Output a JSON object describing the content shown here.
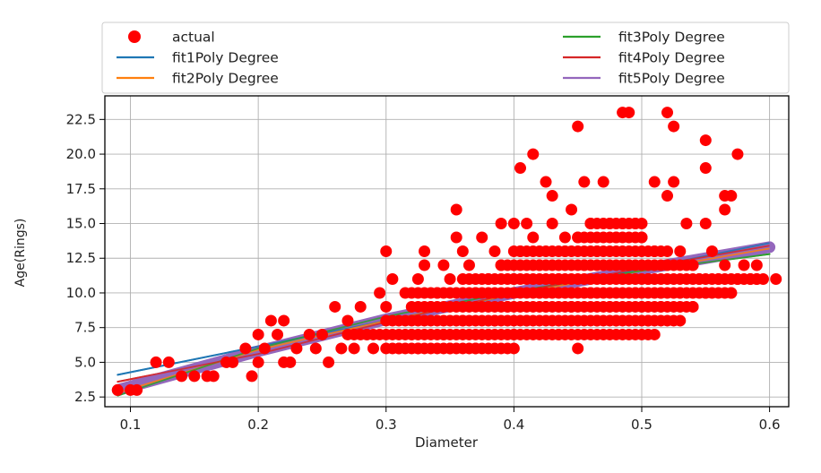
{
  "chart_data": {
    "type": "scatter",
    "xlabel": "Diameter",
    "ylabel": "Age(Rings)",
    "xlim": [
      0.08,
      0.615
    ],
    "ylim": [
      1.8,
      24.2
    ],
    "xticks": [
      0.1,
      0.2,
      0.3,
      0.4,
      0.5,
      0.6
    ],
    "xtick_labels": [
      "0.1",
      "0.2",
      "0.3",
      "0.4",
      "0.5",
      "0.6"
    ],
    "yticks": [
      2.5,
      5.0,
      7.5,
      10.0,
      12.5,
      15.0,
      17.5,
      20.0,
      22.5
    ],
    "ytick_labels": [
      "2.5",
      "5.0",
      "7.5",
      "10.0",
      "12.5",
      "15.0",
      "17.5",
      "20.0",
      "22.5"
    ],
    "grid": true,
    "legend_position": "top",
    "scatter_series": {
      "name": "actual",
      "color": "#ff0000",
      "points": [
        [
          0.09,
          3
        ],
        [
          0.1,
          3
        ],
        [
          0.105,
          3
        ],
        [
          0.12,
          5
        ],
        [
          0.13,
          5
        ],
        [
          0.14,
          4
        ],
        [
          0.15,
          4
        ],
        [
          0.16,
          4
        ],
        [
          0.165,
          4
        ],
        [
          0.175,
          5
        ],
        [
          0.18,
          5
        ],
        [
          0.19,
          6
        ],
        [
          0.195,
          4
        ],
        [
          0.2,
          5
        ],
        [
          0.2,
          7
        ],
        [
          0.205,
          6
        ],
        [
          0.21,
          8
        ],
        [
          0.215,
          7
        ],
        [
          0.22,
          8
        ],
        [
          0.22,
          5
        ],
        [
          0.225,
          5
        ],
        [
          0.23,
          6
        ],
        [
          0.24,
          7
        ],
        [
          0.245,
          6
        ],
        [
          0.25,
          7
        ],
        [
          0.255,
          5
        ],
        [
          0.26,
          9
        ],
        [
          0.265,
          6
        ],
        [
          0.27,
          8
        ],
        [
          0.275,
          6
        ],
        [
          0.28,
          9
        ],
        [
          0.285,
          7
        ],
        [
          0.29,
          6
        ],
        [
          0.295,
          10
        ],
        [
          0.3,
          9
        ],
        [
          0.3,
          13
        ],
        [
          0.305,
          11
        ],
        [
          0.31,
          6
        ],
        [
          0.315,
          10
        ],
        [
          0.32,
          7
        ],
        [
          0.325,
          6
        ],
        [
          0.325,
          11
        ],
        [
          0.33,
          12
        ],
        [
          0.33,
          13
        ],
        [
          0.335,
          9
        ],
        [
          0.34,
          10
        ],
        [
          0.345,
          7
        ],
        [
          0.345,
          12
        ],
        [
          0.35,
          6
        ],
        [
          0.35,
          11
        ],
        [
          0.355,
          14
        ],
        [
          0.355,
          16
        ],
        [
          0.36,
          13
        ],
        [
          0.36,
          8
        ],
        [
          0.365,
          12
        ],
        [
          0.37,
          10
        ],
        [
          0.37,
          6
        ],
        [
          0.375,
          14
        ],
        [
          0.38,
          11
        ],
        [
          0.38,
          7
        ],
        [
          0.385,
          13
        ],
        [
          0.385,
          8
        ],
        [
          0.39,
          15
        ],
        [
          0.39,
          12
        ],
        [
          0.395,
          9
        ],
        [
          0.4,
          15
        ],
        [
          0.4,
          11
        ],
        [
          0.4,
          7
        ],
        [
          0.405,
          19
        ],
        [
          0.405,
          13
        ],
        [
          0.41,
          8
        ],
        [
          0.41,
          15
        ],
        [
          0.415,
          20
        ],
        [
          0.415,
          14
        ],
        [
          0.42,
          10
        ],
        [
          0.42,
          12
        ],
        [
          0.425,
          18
        ],
        [
          0.425,
          9
        ],
        [
          0.43,
          17
        ],
        [
          0.43,
          15
        ],
        [
          0.435,
          11
        ],
        [
          0.435,
          7
        ],
        [
          0.44,
          14
        ],
        [
          0.44,
          13
        ],
        [
          0.445,
          16
        ],
        [
          0.445,
          9
        ],
        [
          0.45,
          22
        ],
        [
          0.45,
          14
        ],
        [
          0.45,
          6
        ],
        [
          0.455,
          18
        ],
        [
          0.455,
          12
        ],
        [
          0.46,
          10
        ],
        [
          0.46,
          15
        ],
        [
          0.465,
          8
        ],
        [
          0.465,
          13
        ],
        [
          0.47,
          18
        ],
        [
          0.47,
          11
        ],
        [
          0.475,
          15
        ],
        [
          0.475,
          9
        ],
        [
          0.48,
          14
        ],
        [
          0.48,
          8
        ],
        [
          0.485,
          23
        ],
        [
          0.485,
          15
        ],
        [
          0.49,
          23
        ],
        [
          0.49,
          12
        ],
        [
          0.495,
          10
        ],
        [
          0.495,
          15
        ],
        [
          0.5,
          14
        ],
        [
          0.5,
          9
        ],
        [
          0.505,
          11
        ],
        [
          0.505,
          8
        ],
        [
          0.51,
          13
        ],
        [
          0.51,
          18
        ],
        [
          0.515,
          10
        ],
        [
          0.515,
          9
        ],
        [
          0.52,
          23
        ],
        [
          0.52,
          17
        ],
        [
          0.52,
          12
        ],
        [
          0.525,
          22
        ],
        [
          0.525,
          18
        ],
        [
          0.53,
          13
        ],
        [
          0.53,
          10
        ],
        [
          0.535,
          15
        ],
        [
          0.54,
          12
        ],
        [
          0.54,
          9
        ],
        [
          0.545,
          11
        ],
        [
          0.55,
          21
        ],
        [
          0.55,
          19
        ],
        [
          0.55,
          15
        ],
        [
          0.55,
          10
        ],
        [
          0.555,
          13
        ],
        [
          0.56,
          11
        ],
        [
          0.565,
          17
        ],
        [
          0.565,
          16
        ],
        [
          0.565,
          12
        ],
        [
          0.57,
          17
        ],
        [
          0.57,
          10
        ],
        [
          0.575,
          20
        ],
        [
          0.575,
          11
        ],
        [
          0.58,
          12
        ],
        [
          0.585,
          11
        ],
        [
          0.59,
          12
        ],
        [
          0.59,
          11
        ],
        [
          0.595,
          11
        ],
        [
          0.605,
          11
        ]
      ],
      "dense_bands": [
        {
          "y": 6,
          "x_range": [
            0.3,
            0.4
          ]
        },
        {
          "y": 7,
          "x_range": [
            0.27,
            0.51
          ]
        },
        {
          "y": 8,
          "x_range": [
            0.3,
            0.53
          ]
        },
        {
          "y": 9,
          "x_range": [
            0.32,
            0.54
          ]
        },
        {
          "y": 10,
          "x_range": [
            0.32,
            0.57
          ]
        },
        {
          "y": 11,
          "x_range": [
            0.36,
            0.59
          ]
        },
        {
          "y": 12,
          "x_range": [
            0.39,
            0.54
          ]
        },
        {
          "y": 13,
          "x_range": [
            0.4,
            0.52
          ]
        },
        {
          "y": 14,
          "x_range": [
            0.45,
            0.5
          ]
        },
        {
          "y": 15,
          "x_range": [
            0.46,
            0.5
          ]
        }
      ]
    },
    "fit_series": [
      {
        "name": "fit1Poly Degree",
        "color": "#1f77b4",
        "x": [
          0.09,
          0.6
        ],
        "y": [
          4.1,
          13.6
        ]
      },
      {
        "name": "fit2Poly Degree",
        "color": "#ff7f0e",
        "x": [
          0.09,
          0.2,
          0.3,
          0.4,
          0.5,
          0.6
        ],
        "y": [
          2.8,
          5.9,
          8.0,
          9.9,
          11.6,
          13.2
        ]
      },
      {
        "name": "fit3Poly Degree",
        "color": "#2ca02c",
        "x": [
          0.09,
          0.2,
          0.3,
          0.4,
          0.5,
          0.6
        ],
        "y": [
          2.6,
          6.0,
          8.3,
          10.1,
          11.6,
          12.8
        ]
      },
      {
        "name": "fit4Poly Degree",
        "color": "#d62728",
        "x": [
          0.09,
          0.2,
          0.3,
          0.4,
          0.5,
          0.6
        ],
        "y": [
          3.6,
          5.6,
          7.9,
          10.0,
          11.8,
          13.4
        ]
      },
      {
        "name": "fit5Poly Degree",
        "color": "#9467bd",
        "x": [
          0.09,
          0.2,
          0.3,
          0.4,
          0.5,
          0.6
        ],
        "y": [
          3.0,
          5.8,
          8.1,
          10.0,
          11.7,
          13.3
        ]
      }
    ]
  }
}
